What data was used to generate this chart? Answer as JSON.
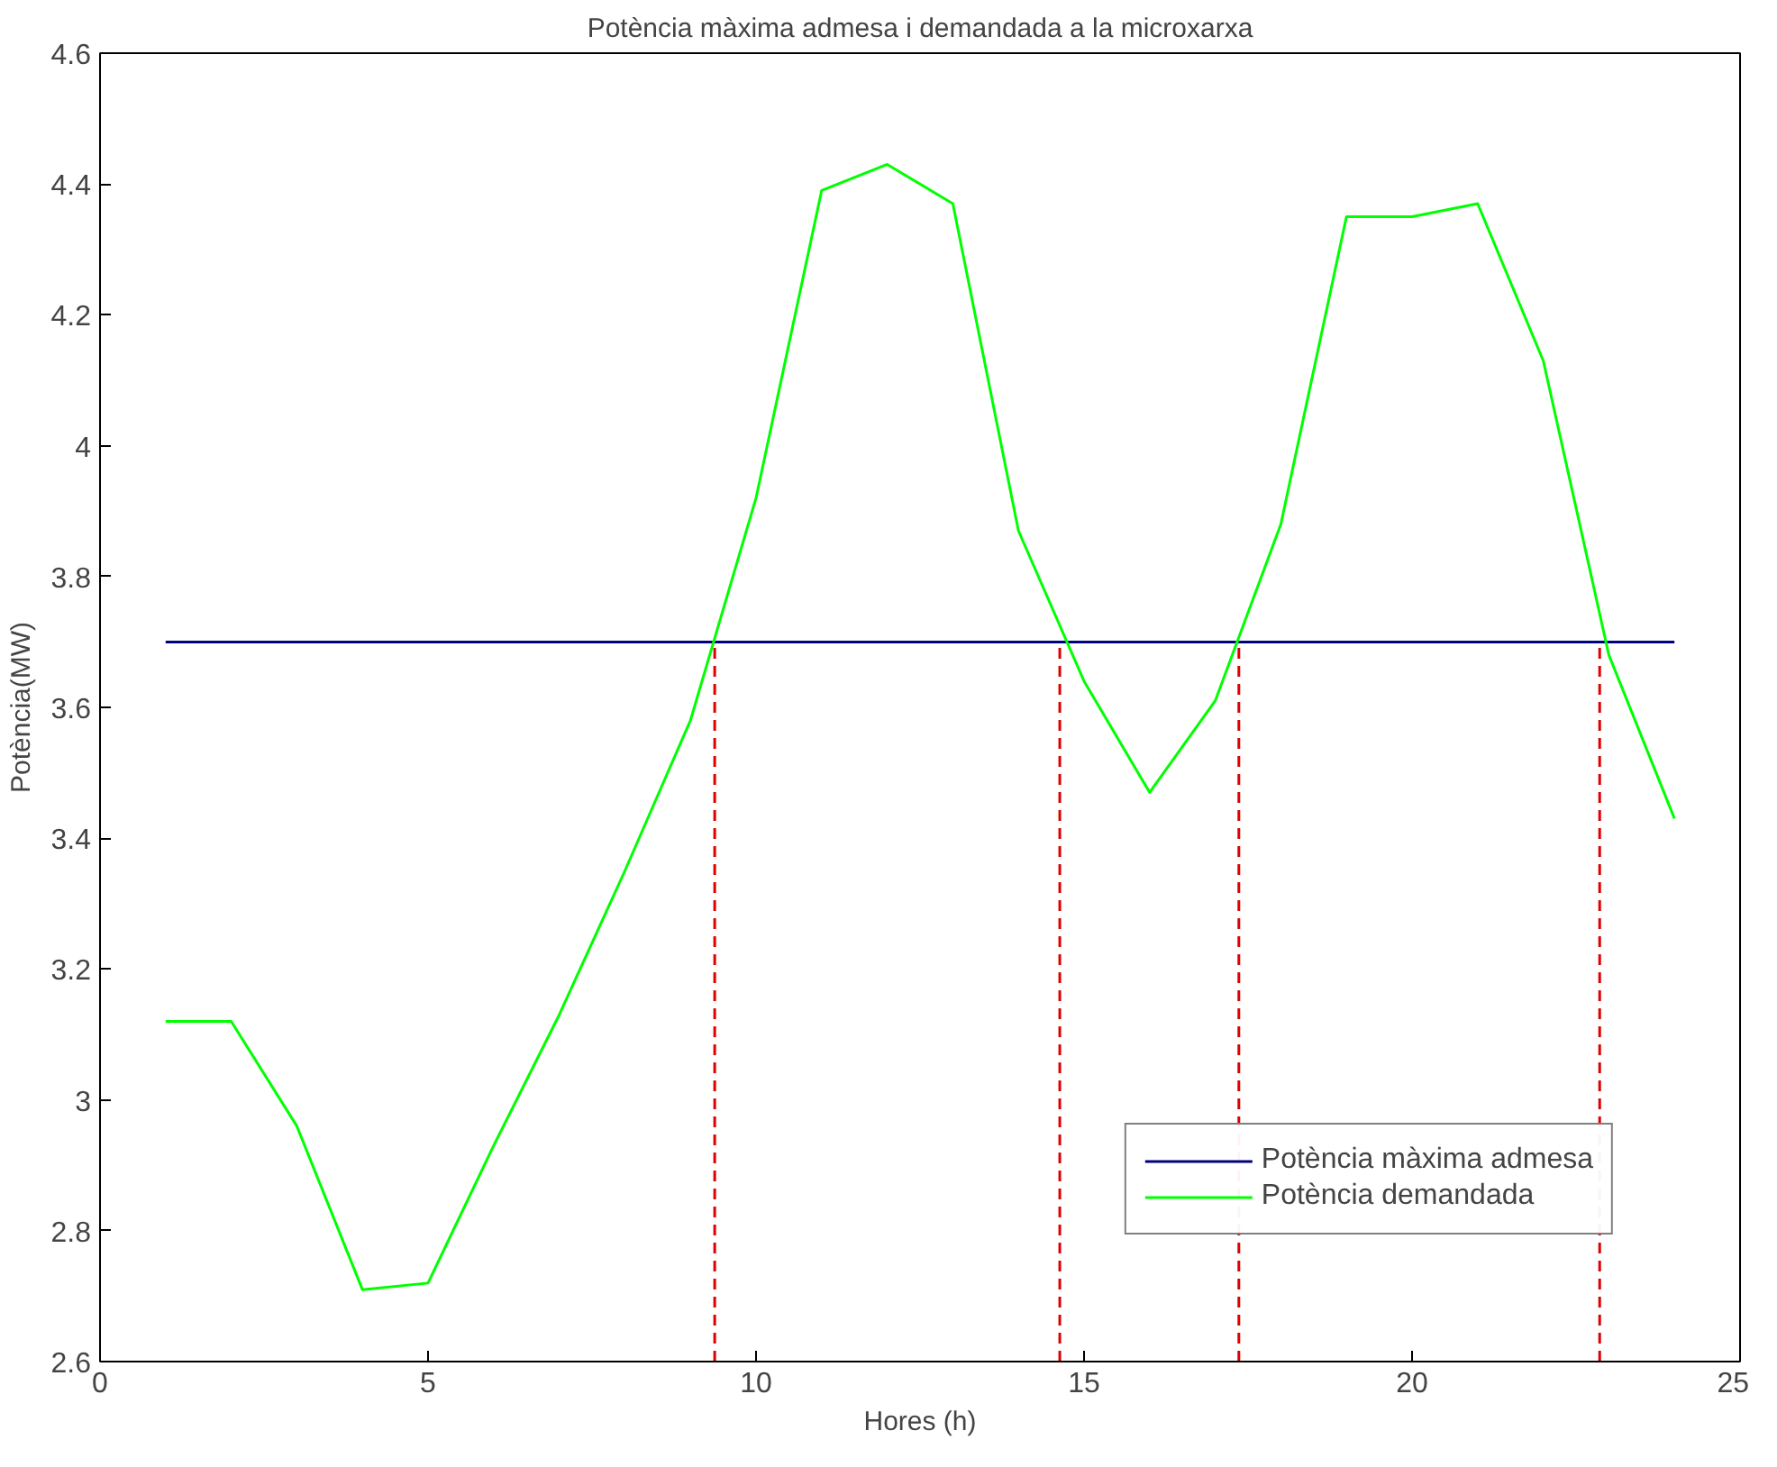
{
  "chart_data": {
    "type": "line",
    "title": "Potència màxima admesa i demandada a la microxarxa",
    "xlabel": "Hores (h)",
    "ylabel": "Potència(MW)",
    "xlim": [
      0,
      25
    ],
    "xticks": [
      0,
      5,
      10,
      15,
      20,
      25
    ],
    "ylim": [
      2.6,
      4.6
    ],
    "yticks": [
      2.6,
      2.8,
      3,
      3.2,
      3.4,
      3.6,
      3.8,
      4,
      4.2,
      4.4,
      4.6
    ],
    "grid": false,
    "legend": "bottom right",
    "marker": "none",
    "series": [
      {
        "name": "Potència màxima admesa",
        "color": "#000080",
        "x": [
          1,
          24
        ],
        "values": [
          3.7,
          3.7
        ]
      },
      {
        "name": "Potència demandada",
        "color": "#00ff00",
        "x": [
          1,
          2,
          3,
          4,
          5,
          6,
          7,
          8,
          9,
          10,
          11,
          12,
          13,
          14,
          15,
          16,
          17,
          18,
          19,
          20,
          21,
          22,
          23,
          24
        ],
        "values": [
          3.12,
          3.12,
          2.96,
          2.71,
          2.72,
          2.93,
          3.13,
          3.35,
          3.58,
          3.92,
          4.39,
          4.43,
          4.37,
          3.87,
          3.64,
          3.47,
          3.61,
          3.88,
          4.35,
          4.35,
          4.37,
          4.13,
          3.68,
          3.43
        ]
      },
      {
        "color": "#dd0000",
        "line_style": "dashed",
        "x": [
          9.37,
          9.37
        ],
        "values": [
          2.6,
          3.7
        ]
      },
      {
        "color": "#dd0000",
        "line_style": "dashed",
        "x": [
          14.63,
          14.63
        ],
        "values": [
          2.6,
          3.7
        ]
      },
      {
        "color": "#dd0000",
        "line_style": "dashed",
        "x": [
          17.36,
          17.36
        ],
        "values": [
          2.6,
          3.7
        ]
      },
      {
        "color": "#dd0000",
        "line_style": "dashed",
        "x": [
          22.86,
          22.86
        ],
        "values": [
          2.6,
          3.7
        ]
      }
    ]
  }
}
